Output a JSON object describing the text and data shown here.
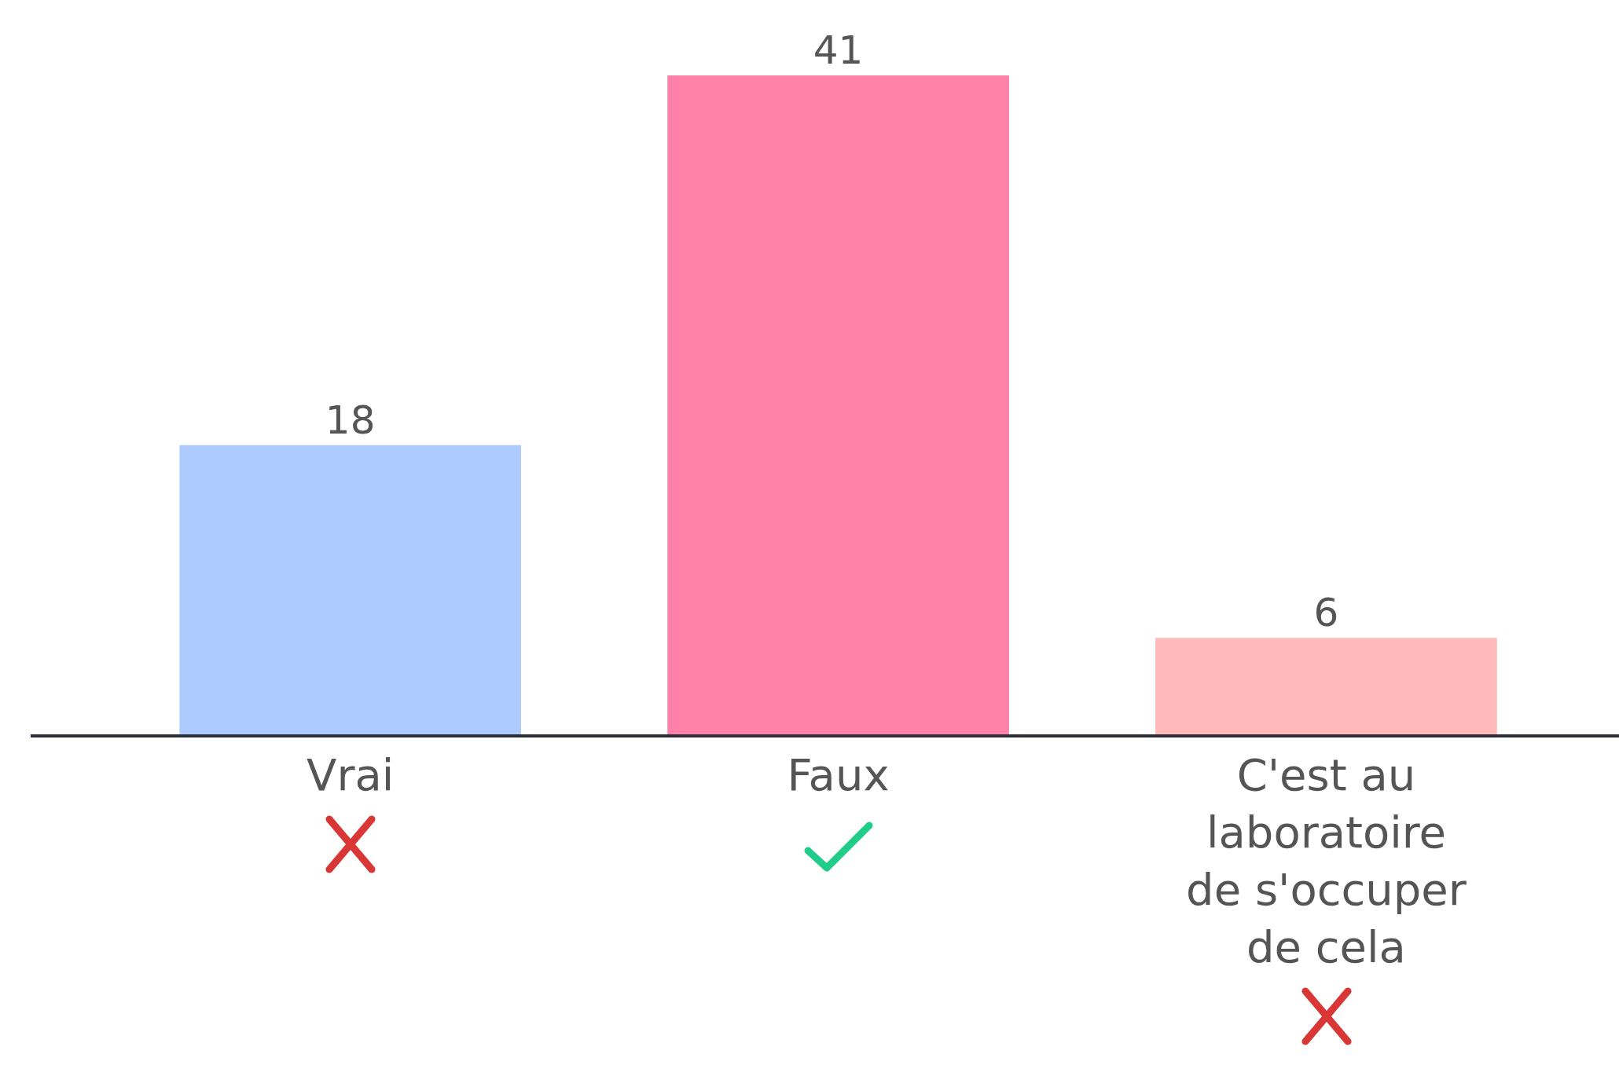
{
  "chart_data": {
    "type": "bar",
    "categories": [
      "Vrai",
      "Faux",
      "C'est au laboratoire de s'occuper de cela"
    ],
    "values": [
      18,
      41,
      6
    ],
    "colors": [
      "#adcbff",
      "#ff80a9",
      "#ffb9b9"
    ],
    "tick_labels": "x",
    "data_labels": true
  }
}
